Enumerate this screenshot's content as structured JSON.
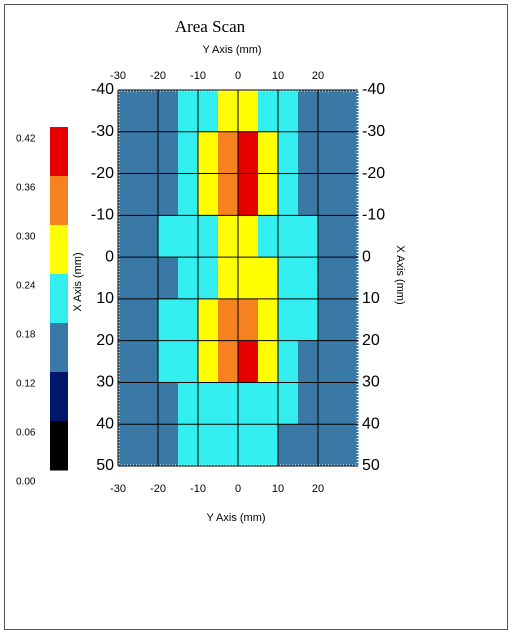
{
  "chart_data": {
    "type": "heatmap",
    "title": "Area Scan",
    "x_label": "Y Axis (mm)",
    "y_label": "X Axis (mm)",
    "xlim": [
      -30,
      30
    ],
    "ylim": [
      -40,
      50
    ],
    "xticks": [
      -30,
      -20,
      -10,
      0,
      10,
      20
    ],
    "yticks": [
      -40,
      -30,
      -20,
      -10,
      0,
      10,
      20,
      30,
      40,
      50
    ],
    "grid": true,
    "z": [
      [
        0.15,
        0.15,
        0.15,
        0.2,
        0.22,
        0.27,
        0.27,
        0.22,
        0.2,
        0.15,
        0.15,
        0.15
      ],
      [
        0.15,
        0.15,
        0.15,
        0.2,
        0.27,
        0.33,
        0.39,
        0.27,
        0.2,
        0.15,
        0.15,
        0.15
      ],
      [
        0.15,
        0.15,
        0.15,
        0.2,
        0.26,
        0.33,
        0.38,
        0.27,
        0.2,
        0.15,
        0.15,
        0.15
      ],
      [
        0.15,
        0.15,
        0.2,
        0.2,
        0.22,
        0.27,
        0.27,
        0.22,
        0.2,
        0.2,
        0.15,
        0.15
      ],
      [
        0.15,
        0.15,
        0.15,
        0.2,
        0.22,
        0.26,
        0.27,
        0.26,
        0.2,
        0.2,
        0.15,
        0.15
      ],
      [
        0.15,
        0.15,
        0.2,
        0.2,
        0.27,
        0.33,
        0.33,
        0.27,
        0.22,
        0.2,
        0.15,
        0.15
      ],
      [
        0.15,
        0.15,
        0.2,
        0.2,
        0.27,
        0.33,
        0.38,
        0.27,
        0.2,
        0.15,
        0.15,
        0.15
      ],
      [
        0.15,
        0.15,
        0.15,
        0.2,
        0.2,
        0.22,
        0.22,
        0.2,
        0.2,
        0.15,
        0.15,
        0.15
      ],
      [
        0.15,
        0.15,
        0.15,
        0.2,
        0.2,
        0.2,
        0.2,
        0.2,
        0.15,
        0.15,
        0.15,
        0.15
      ]
    ],
    "colorbar": {
      "ticks": [
        0.42,
        0.36,
        {
          "value": 0.3,
          "label": "0.30"
        },
        0.24,
        0.18,
        0.12,
        0.06,
        {
          "value": 0,
          "label": "0.00"
        }
      ],
      "colors": [
        "#e60000",
        "#f5821f",
        "#ffff00",
        "#33eeee",
        "#3a78a5",
        "#00166b",
        "#000000"
      ]
    }
  }
}
